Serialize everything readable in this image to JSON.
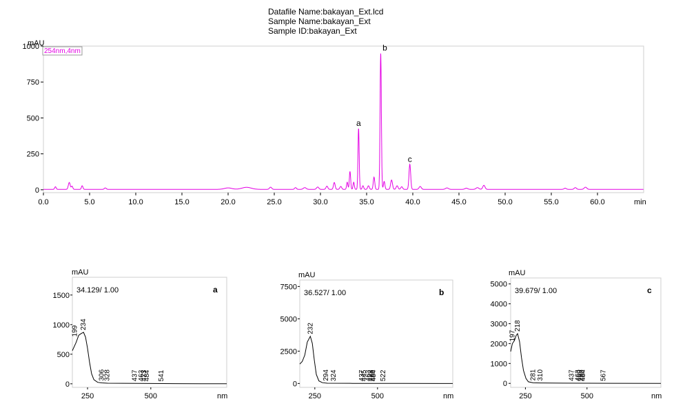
{
  "header": {
    "datafile": "Datafile Name:bakayan_Ext.lcd",
    "sample_name": "Sample Name:bakayan_Ext",
    "sample_id": "Sample ID:bakayan_Ext"
  },
  "colors": {
    "chromatogram": "#e400e4",
    "spectrum": "#000000",
    "frame": "#cfcfcf"
  },
  "chart_data": [
    {
      "type": "line",
      "id": "chromatogram",
      "ylabel": "mAU",
      "xlabel": "min",
      "legend": "254nm,4nm",
      "legend_position": "top-left",
      "xlim": [
        0,
        65
      ],
      "ylim": [
        -20,
        1000
      ],
      "xticks": [
        "0.0",
        "5.0",
        "10.0",
        "15.0",
        "20.0",
        "25.0",
        "30.0",
        "35.0",
        "40.0",
        "45.0",
        "50.0",
        "55.0",
        "60.0"
      ],
      "yticks": [
        "0",
        "250",
        "500",
        "750",
        "1000"
      ],
      "baseline": 3,
      "peaks": [
        {
          "x": 1.3,
          "y": 18,
          "w": 0.08
        },
        {
          "x": 2.8,
          "y": 48,
          "w": 0.1
        },
        {
          "x": 3.1,
          "y": 22,
          "w": 0.08
        },
        {
          "x": 4.2,
          "y": 25,
          "w": 0.08
        },
        {
          "x": 6.7,
          "y": 10,
          "w": 0.1
        },
        {
          "x": 20.0,
          "y": 10,
          "w": 0.4
        },
        {
          "x": 22.0,
          "y": 14,
          "w": 0.5
        },
        {
          "x": 24.6,
          "y": 15,
          "w": 0.12
        },
        {
          "x": 27.3,
          "y": 12,
          "w": 0.1
        },
        {
          "x": 28.3,
          "y": 12,
          "w": 0.15
        },
        {
          "x": 29.7,
          "y": 16,
          "w": 0.12
        },
        {
          "x": 30.7,
          "y": 22,
          "w": 0.1
        },
        {
          "x": 31.5,
          "y": 48,
          "w": 0.09
        },
        {
          "x": 32.2,
          "y": 20,
          "w": 0.1
        },
        {
          "x": 32.9,
          "y": 50,
          "w": 0.07
        },
        {
          "x": 33.2,
          "y": 125,
          "w": 0.07
        },
        {
          "x": 33.6,
          "y": 50,
          "w": 0.07
        },
        {
          "x": 34.13,
          "y": 425,
          "w": 0.065
        },
        {
          "x": 34.6,
          "y": 25,
          "w": 0.08
        },
        {
          "x": 35.2,
          "y": 25,
          "w": 0.09
        },
        {
          "x": 35.8,
          "y": 85,
          "w": 0.08
        },
        {
          "x": 36.527,
          "y": 950,
          "w": 0.07
        },
        {
          "x": 36.9,
          "y": 55,
          "w": 0.08
        },
        {
          "x": 37.7,
          "y": 65,
          "w": 0.1
        },
        {
          "x": 38.3,
          "y": 25,
          "w": 0.1
        },
        {
          "x": 38.8,
          "y": 18,
          "w": 0.1
        },
        {
          "x": 39.679,
          "y": 175,
          "w": 0.09
        },
        {
          "x": 40.8,
          "y": 20,
          "w": 0.12
        },
        {
          "x": 43.7,
          "y": 10,
          "w": 0.15
        },
        {
          "x": 45.8,
          "y": 8,
          "w": 0.15
        },
        {
          "x": 47.0,
          "y": 12,
          "w": 0.15
        },
        {
          "x": 47.7,
          "y": 28,
          "w": 0.12
        },
        {
          "x": 56.5,
          "y": 8,
          "w": 0.12
        },
        {
          "x": 57.6,
          "y": 12,
          "w": 0.12
        },
        {
          "x": 58.7,
          "y": 15,
          "w": 0.14
        }
      ],
      "annotations": [
        {
          "label": "a",
          "x": 34.13,
          "y": 425
        },
        {
          "label": "b",
          "x": 36.527,
          "y": 950
        },
        {
          "label": "c",
          "x": 39.679,
          "y": 175
        }
      ]
    },
    {
      "type": "line",
      "id": "spectrum-a",
      "panel_label": "a",
      "caption": "34.129/ 1.00",
      "ylabel": "mAU",
      "xlabel": "nm",
      "xlim": [
        190,
        800
      ],
      "ylim": [
        -60,
        1800
      ],
      "xticks": [
        "250",
        "500"
      ],
      "yticks": [
        "0",
        "500",
        "1000",
        "1500"
      ],
      "curve": [
        [
          190,
          560
        ],
        [
          205,
          700
        ],
        [
          215,
          820
        ],
        [
          225,
          850
        ],
        [
          234,
          870
        ],
        [
          242,
          790
        ],
        [
          250,
          600
        ],
        [
          258,
          360
        ],
        [
          266,
          170
        ],
        [
          275,
          70
        ],
        [
          290,
          25
        ],
        [
          306,
          15
        ],
        [
          330,
          10
        ],
        [
          450,
          6
        ],
        [
          600,
          3
        ],
        [
          700,
          2
        ],
        [
          800,
          0
        ]
      ],
      "peak_labels": [
        {
          "text": "199",
          "x": 199,
          "y": 760
        },
        {
          "text": "234",
          "x": 234,
          "y": 870
        },
        {
          "text": "306",
          "x": 306,
          "y": 15
        },
        {
          "text": "328",
          "x": 328,
          "y": 12
        },
        {
          "text": "437",
          "x": 437,
          "y": 7
        },
        {
          "text": "463",
          "x": 463,
          "y": 6
        },
        {
          "text": "473",
          "x": 473,
          "y": 6
        },
        {
          "text": "484",
          "x": 484,
          "y": 6
        },
        {
          "text": "541",
          "x": 541,
          "y": 4
        }
      ]
    },
    {
      "type": "line",
      "id": "spectrum-b",
      "panel_label": "b",
      "caption": "36.527/ 1.00",
      "ylabel": "mAU",
      "xlabel": "nm",
      "xlim": [
        190,
        800
      ],
      "ylim": [
        -300,
        8000
      ],
      "xticks": [
        "250",
        "500"
      ],
      "yticks": [
        "0",
        "2500",
        "5000",
        "7500"
      ],
      "curve": [
        [
          190,
          1500
        ],
        [
          200,
          1700
        ],
        [
          210,
          2200
        ],
        [
          220,
          3200
        ],
        [
          232,
          3650
        ],
        [
          240,
          3100
        ],
        [
          248,
          1800
        ],
        [
          256,
          700
        ],
        [
          266,
          200
        ],
        [
          280,
          60
        ],
        [
          300,
          20
        ],
        [
          400,
          8
        ],
        [
          600,
          3
        ],
        [
          800,
          0
        ]
      ],
      "peak_labels": [
        {
          "text": "232",
          "x": 232,
          "y": 3650
        },
        {
          "text": "294",
          "x": 294,
          "y": 30
        },
        {
          "text": "324",
          "x": 324,
          "y": 15
        },
        {
          "text": "437",
          "x": 437,
          "y": 8
        },
        {
          "text": "445",
          "x": 445,
          "y": 8
        },
        {
          "text": "463",
          "x": 463,
          "y": 7
        },
        {
          "text": "472",
          "x": 472,
          "y": 7
        },
        {
          "text": "480",
          "x": 480,
          "y": 6
        },
        {
          "text": "484",
          "x": 484,
          "y": 6
        },
        {
          "text": "522",
          "x": 522,
          "y": 5
        }
      ]
    },
    {
      "type": "line",
      "id": "spectrum-c",
      "panel_label": "c",
      "caption": "39.679/ 1.00",
      "ylabel": "mAU",
      "xlabel": "nm",
      "xlim": [
        190,
        800
      ],
      "ylim": [
        -200,
        5300
      ],
      "xticks": [
        "250",
        "500"
      ],
      "yticks": [
        "0",
        "1000",
        "2000",
        "3000",
        "4000",
        "5000"
      ],
      "curve": [
        [
          190,
          1600
        ],
        [
          197,
          2000
        ],
        [
          205,
          2150
        ],
        [
          212,
          2400
        ],
        [
          218,
          2500
        ],
        [
          226,
          2100
        ],
        [
          234,
          1300
        ],
        [
          242,
          650
        ],
        [
          252,
          250
        ],
        [
          262,
          80
        ],
        [
          281,
          30
        ],
        [
          310,
          20
        ],
        [
          400,
          10
        ],
        [
          600,
          4
        ],
        [
          800,
          0
        ]
      ],
      "peak_labels": [
        {
          "text": "197",
          "x": 197,
          "y": 2000
        },
        {
          "text": "218",
          "x": 218,
          "y": 2500
        },
        {
          "text": "281",
          "x": 281,
          "y": 30
        },
        {
          "text": "310",
          "x": 310,
          "y": 20
        },
        {
          "text": "437",
          "x": 437,
          "y": 10
        },
        {
          "text": "463",
          "x": 463,
          "y": 9
        },
        {
          "text": "469",
          "x": 469,
          "y": 9
        },
        {
          "text": "480",
          "x": 480,
          "y": 8
        },
        {
          "text": "484",
          "x": 484,
          "y": 8
        },
        {
          "text": "567",
          "x": 567,
          "y": 6
        }
      ]
    }
  ]
}
